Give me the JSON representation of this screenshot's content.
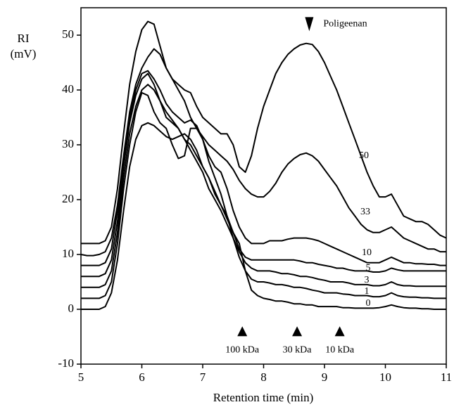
{
  "chart_data": {
    "type": "line",
    "x_label": "Retention time (min)",
    "y_label": [
      "RI",
      "(mV)"
    ],
    "xlim": [
      5,
      11
    ],
    "xticks": [
      5,
      6,
      7,
      8,
      9,
      10,
      11
    ],
    "ylim": [
      -10,
      55
    ],
    "yticks": [
      -10,
      0,
      10,
      20,
      30,
      40,
      50
    ],
    "x": [
      5,
      5.1,
      5.2,
      5.3,
      5.4,
      5.5,
      5.6,
      5.7,
      5.8,
      5.9,
      6,
      6.1,
      6.2,
      6.3,
      6.4,
      6.5,
      6.6,
      6.7,
      6.8,
      6.9,
      7,
      7.1,
      7.2,
      7.3,
      7.4,
      7.5,
      7.6,
      7.7,
      7.8,
      7.9,
      8,
      8.1,
      8.2,
      8.3,
      8.4,
      8.5,
      8.6,
      8.7,
      8.8,
      8.9,
      9,
      9.1,
      9.2,
      9.3,
      9.4,
      9.5,
      9.6,
      9.7,
      9.8,
      9.9,
      10,
      10.1,
      10.2,
      10.3,
      10.4,
      10.5,
      10.6,
      10.7,
      10.8,
      10.9,
      11
    ],
    "series": [
      {
        "name": "50",
        "color": "#000000",
        "values": [
          12,
          12,
          12,
          12,
          12.5,
          15,
          22,
          32,
          41,
          47,
          51,
          52.5,
          52,
          48,
          44,
          42,
          41,
          40,
          39.5,
          37,
          35,
          34,
          33,
          32,
          32,
          30,
          26,
          25,
          28,
          33,
          37,
          40,
          43,
          45,
          46.5,
          47.5,
          48.2,
          48.5,
          48.3,
          47,
          45,
          42.5,
          40,
          37,
          34,
          31,
          28,
          25,
          22.5,
          20.5,
          20.5,
          21,
          19,
          17,
          16.5,
          16,
          16,
          15.5,
          14.5,
          13.5,
          13
        ]
      },
      {
        "name": "33",
        "color": "#000000",
        "values": [
          10,
          9.8,
          9.8,
          10,
          10.5,
          13,
          19,
          28,
          36,
          41,
          44,
          46,
          47.5,
          46.5,
          44,
          42,
          40,
          38,
          35,
          33,
          31.5,
          30,
          29,
          28,
          27,
          25.5,
          23.5,
          22,
          21,
          20.5,
          20.5,
          21.5,
          23,
          25,
          26.5,
          27.5,
          28.2,
          28.5,
          28,
          27,
          25.5,
          24,
          22.5,
          20.5,
          18.5,
          17,
          15.5,
          14.5,
          14,
          14,
          14.5,
          15,
          14,
          13,
          12.5,
          12,
          11.5,
          11,
          11,
          10.5,
          10.5
        ]
      },
      {
        "name": "10",
        "color": "#000000",
        "values": [
          8,
          8,
          8,
          8,
          8.5,
          11,
          18,
          27,
          35,
          40,
          43,
          43.5,
          42,
          40,
          37.5,
          36,
          35,
          34,
          34.5,
          33.5,
          31,
          28,
          26,
          25,
          22,
          18,
          15,
          13,
          12,
          12,
          12,
          12.5,
          12.5,
          12.5,
          12.8,
          13,
          13,
          13,
          12.8,
          12.5,
          12,
          11.5,
          11,
          10.5,
          10,
          9.5,
          9,
          8.5,
          8.5,
          8.5,
          9,
          9.5,
          9,
          8.5,
          8.5,
          8.3,
          8.3,
          8.2,
          8.2,
          8,
          8
        ]
      },
      {
        "name": "5",
        "color": "#000000",
        "values": [
          6,
          6,
          6,
          6,
          6.5,
          9,
          16,
          26,
          34,
          39,
          42,
          43,
          41,
          38,
          36,
          34.5,
          33,
          31,
          30,
          28,
          26,
          24,
          21,
          19,
          17,
          14,
          11,
          9.5,
          9,
          9,
          9,
          9,
          9,
          9,
          9,
          9,
          8.8,
          8.5,
          8.5,
          8.2,
          8,
          7.8,
          7.5,
          7.5,
          7.2,
          7,
          7,
          7,
          6.8,
          6.8,
          7,
          7.5,
          7.2,
          7,
          7,
          7,
          7,
          7,
          7,
          7,
          7
        ]
      },
      {
        "name": "3",
        "color": "#000000",
        "values": [
          4,
          4,
          4,
          4,
          4.5,
          7,
          14,
          24,
          32,
          37,
          40,
          41,
          40,
          38,
          35,
          34,
          33,
          31,
          29,
          27,
          25,
          22,
          20,
          18,
          15.5,
          13,
          10.5,
          8.5,
          7.5,
          7,
          7,
          7,
          6.8,
          6.5,
          6.5,
          6.3,
          6,
          6,
          5.8,
          5.5,
          5.3,
          5,
          5,
          5,
          4.8,
          4.5,
          4.5,
          4.5,
          4.3,
          4.3,
          4.5,
          5,
          4.5,
          4.3,
          4.3,
          4.2,
          4.2,
          4.2,
          4.2,
          4.2,
          4.2
        ]
      },
      {
        "name": "1",
        "color": "#000000",
        "values": [
          2,
          2,
          2,
          2,
          2.5,
          5,
          12,
          22,
          30,
          36,
          39.5,
          39,
          36,
          34,
          33,
          30,
          27.5,
          28,
          33,
          33,
          31,
          27,
          24,
          21,
          17,
          13,
          9.5,
          7,
          5.5,
          5,
          5,
          4.8,
          4.5,
          4.5,
          4.3,
          4,
          4,
          3.8,
          3.5,
          3.3,
          3,
          3,
          3,
          2.8,
          2.7,
          2.5,
          2.5,
          2.5,
          2.3,
          2.3,
          2.5,
          3,
          2.5,
          2.3,
          2.2,
          2.2,
          2.1,
          2.1,
          2,
          2,
          2
        ]
      },
      {
        "name": "0",
        "color": "#000000",
        "values": [
          0,
          0,
          0,
          0,
          0.5,
          3,
          9,
          18,
          26,
          31,
          33.5,
          34,
          33.5,
          32.5,
          31.5,
          31,
          31.5,
          32,
          31,
          29,
          26,
          24,
          21.5,
          19,
          16.5,
          14,
          12,
          7,
          3.5,
          2.5,
          2,
          1.8,
          1.5,
          1.5,
          1.3,
          1,
          1,
          0.8,
          0.8,
          0.5,
          0.5,
          0.5,
          0.5,
          0.3,
          0.3,
          0.2,
          0.2,
          0.2,
          0.2,
          0.3,
          0.5,
          0.8,
          0.5,
          0.3,
          0.2,
          0.2,
          0.1,
          0.1,
          0,
          0,
          0
        ]
      }
    ],
    "annotations": [
      {
        "text": "Poligeenan",
        "x": 8.75,
        "y": 52
      }
    ],
    "markers": [
      {
        "text": "100 kDa",
        "x": 7.65,
        "y": -4
      },
      {
        "text": "30 kDa",
        "x": 8.55,
        "y": -4
      },
      {
        "text": "10 kDa",
        "x": 9.25,
        "y": -4
      }
    ]
  }
}
